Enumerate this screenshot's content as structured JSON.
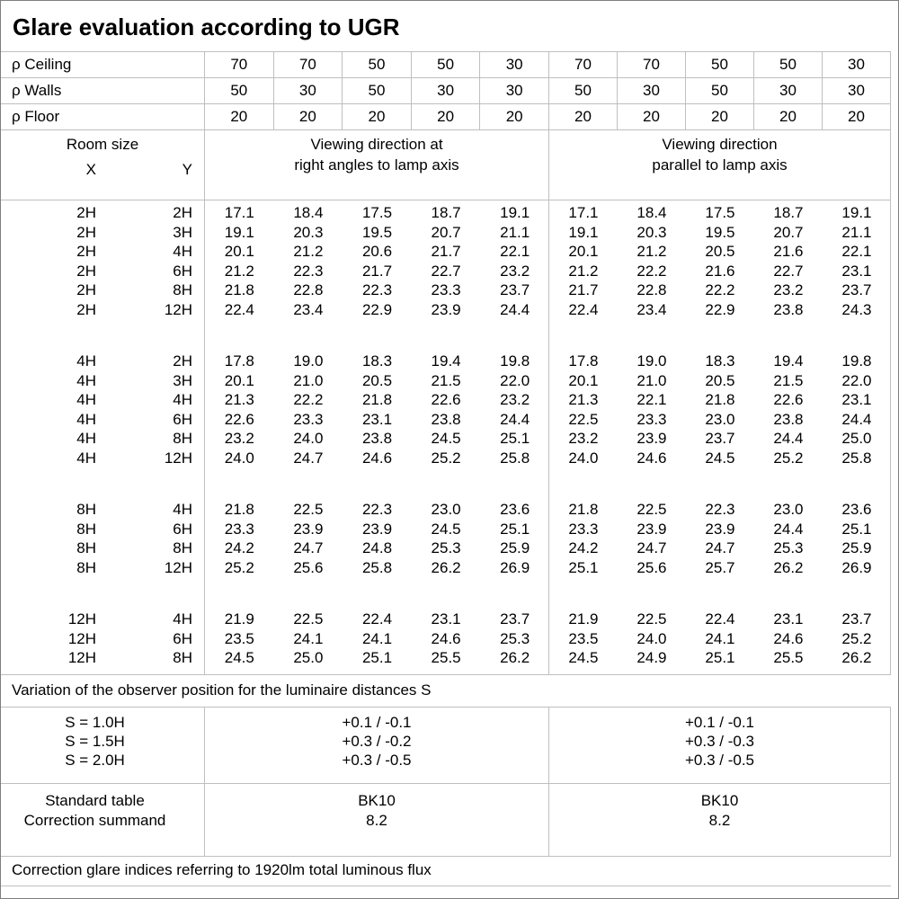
{
  "title": "Glare evaluation according to UGR",
  "colors": {
    "background": "#ffffff",
    "text": "#000000",
    "grid_line": "#bfbfbf",
    "outer_border": "#7f7f7f"
  },
  "header": {
    "reflectance_rows": [
      {
        "label": "ρ Ceiling",
        "values": [
          "70",
          "70",
          "50",
          "50",
          "30",
          "70",
          "70",
          "50",
          "50",
          "30"
        ]
      },
      {
        "label": "ρ Walls",
        "values": [
          "50",
          "30",
          "50",
          "30",
          "30",
          "50",
          "30",
          "50",
          "30",
          "30"
        ]
      },
      {
        "label": "ρ Floor",
        "values": [
          "20",
          "20",
          "20",
          "20",
          "20",
          "20",
          "20",
          "20",
          "20",
          "20"
        ]
      }
    ],
    "room_size_label": "Room size",
    "x_label": "X",
    "y_label": "Y",
    "right_angle_title_line1": "Viewing direction at",
    "right_angle_title_line2": "right angles to lamp axis",
    "parallel_title_line1": "Viewing direction",
    "parallel_title_line2": "parallel to lamp axis"
  },
  "ugr_groups": [
    {
      "rows": [
        {
          "x": "2H",
          "y": "2H",
          "right_angle": [
            "17.1",
            "18.4",
            "17.5",
            "18.7",
            "19.1"
          ],
          "parallel": [
            "17.1",
            "18.4",
            "17.5",
            "18.7",
            "19.1"
          ]
        },
        {
          "x": "2H",
          "y": "3H",
          "right_angle": [
            "19.1",
            "20.3",
            "19.5",
            "20.7",
            "21.1"
          ],
          "parallel": [
            "19.1",
            "20.3",
            "19.5",
            "20.7",
            "21.1"
          ]
        },
        {
          "x": "2H",
          "y": "4H",
          "right_angle": [
            "20.1",
            "21.2",
            "20.6",
            "21.7",
            "22.1"
          ],
          "parallel": [
            "20.1",
            "21.2",
            "20.5",
            "21.6",
            "22.1"
          ]
        },
        {
          "x": "2H",
          "y": "6H",
          "right_angle": [
            "21.2",
            "22.3",
            "21.7",
            "22.7",
            "23.2"
          ],
          "parallel": [
            "21.2",
            "22.2",
            "21.6",
            "22.7",
            "23.1"
          ]
        },
        {
          "x": "2H",
          "y": "8H",
          "right_angle": [
            "21.8",
            "22.8",
            "22.3",
            "23.3",
            "23.7"
          ],
          "parallel": [
            "21.7",
            "22.8",
            "22.2",
            "23.2",
            "23.7"
          ]
        },
        {
          "x": "2H",
          "y": "12H",
          "right_angle": [
            "22.4",
            "23.4",
            "22.9",
            "23.9",
            "24.4"
          ],
          "parallel": [
            "22.4",
            "23.4",
            "22.9",
            "23.8",
            "24.3"
          ]
        }
      ]
    },
    {
      "rows": [
        {
          "x": "4H",
          "y": "2H",
          "right_angle": [
            "17.8",
            "19.0",
            "18.3",
            "19.4",
            "19.8"
          ],
          "parallel": [
            "17.8",
            "19.0",
            "18.3",
            "19.4",
            "19.8"
          ]
        },
        {
          "x": "4H",
          "y": "3H",
          "right_angle": [
            "20.1",
            "21.0",
            "20.5",
            "21.5",
            "22.0"
          ],
          "parallel": [
            "20.1",
            "21.0",
            "20.5",
            "21.5",
            "22.0"
          ]
        },
        {
          "x": "4H",
          "y": "4H",
          "right_angle": [
            "21.3",
            "22.2",
            "21.8",
            "22.6",
            "23.2"
          ],
          "parallel": [
            "21.3",
            "22.1",
            "21.8",
            "22.6",
            "23.1"
          ]
        },
        {
          "x": "4H",
          "y": "6H",
          "right_angle": [
            "22.6",
            "23.3",
            "23.1",
            "23.8",
            "24.4"
          ],
          "parallel": [
            "22.5",
            "23.3",
            "23.0",
            "23.8",
            "24.4"
          ]
        },
        {
          "x": "4H",
          "y": "8H",
          "right_angle": [
            "23.2",
            "24.0",
            "23.8",
            "24.5",
            "25.1"
          ],
          "parallel": [
            "23.2",
            "23.9",
            "23.7",
            "24.4",
            "25.0"
          ]
        },
        {
          "x": "4H",
          "y": "12H",
          "right_angle": [
            "24.0",
            "24.7",
            "24.6",
            "25.2",
            "25.8"
          ],
          "parallel": [
            "24.0",
            "24.6",
            "24.5",
            "25.2",
            "25.8"
          ]
        }
      ]
    },
    {
      "rows": [
        {
          "x": "8H",
          "y": "4H",
          "right_angle": [
            "21.8",
            "22.5",
            "22.3",
            "23.0",
            "23.6"
          ],
          "parallel": [
            "21.8",
            "22.5",
            "22.3",
            "23.0",
            "23.6"
          ]
        },
        {
          "x": "8H",
          "y": "6H",
          "right_angle": [
            "23.3",
            "23.9",
            "23.9",
            "24.5",
            "25.1"
          ],
          "parallel": [
            "23.3",
            "23.9",
            "23.9",
            "24.4",
            "25.1"
          ]
        },
        {
          "x": "8H",
          "y": "8H",
          "right_angle": [
            "24.2",
            "24.7",
            "24.8",
            "25.3",
            "25.9"
          ],
          "parallel": [
            "24.2",
            "24.7",
            "24.7",
            "25.3",
            "25.9"
          ]
        },
        {
          "x": "8H",
          "y": "12H",
          "right_angle": [
            "25.2",
            "25.6",
            "25.8",
            "26.2",
            "26.9"
          ],
          "parallel": [
            "25.1",
            "25.6",
            "25.7",
            "26.2",
            "26.9"
          ]
        }
      ]
    },
    {
      "rows": [
        {
          "x": "12H",
          "y": "4H",
          "right_angle": [
            "21.9",
            "22.5",
            "22.4",
            "23.1",
            "23.7"
          ],
          "parallel": [
            "21.9",
            "22.5",
            "22.4",
            "23.1",
            "23.7"
          ]
        },
        {
          "x": "12H",
          "y": "6H",
          "right_angle": [
            "23.5",
            "24.1",
            "24.1",
            "24.6",
            "25.3"
          ],
          "parallel": [
            "23.5",
            "24.0",
            "24.1",
            "24.6",
            "25.2"
          ]
        },
        {
          "x": "12H",
          "y": "8H",
          "right_angle": [
            "24.5",
            "25.0",
            "25.1",
            "25.5",
            "26.2"
          ],
          "parallel": [
            "24.5",
            "24.9",
            "25.1",
            "25.5",
            "26.2"
          ]
        }
      ]
    }
  ],
  "footer": {
    "variation_note": "Variation of the observer position for the luminaire distances S",
    "spacing_rows": [
      {
        "label": "S = 1.0H",
        "right_angle": "+0.1 / -0.1",
        "parallel": "+0.1 / -0.1"
      },
      {
        "label": "S = 1.5H",
        "right_angle": "+0.3 / -0.2",
        "parallel": "+0.3 / -0.3"
      },
      {
        "label": "S = 2.0H",
        "right_angle": "+0.3 / -0.5",
        "parallel": "+0.3 / -0.5"
      }
    ],
    "standard_table_label": "Standard table",
    "correction_summand_label": "Correction summand",
    "standard_table_values": {
      "right_angle": "BK10",
      "parallel": "BK10"
    },
    "correction_summand_values": {
      "right_angle": "8.2",
      "parallel": "8.2"
    },
    "correction_note": "Correction glare indices referring to 1920lm total luminous flux"
  }
}
